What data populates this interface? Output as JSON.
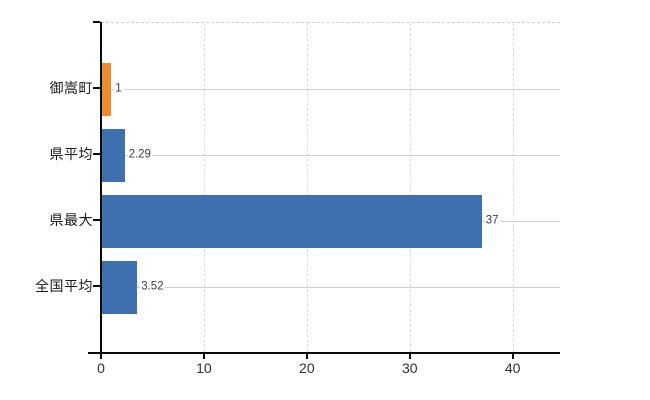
{
  "chart_data": {
    "type": "bar",
    "orientation": "horizontal",
    "title": "",
    "categories": [
      "御嵩町",
      "県平均",
      "県最大",
      "全国平均"
    ],
    "values": [
      1,
      2.29,
      37,
      3.52
    ],
    "value_labels": [
      "1",
      "2.29",
      "37",
      "3.52"
    ],
    "bar_colors": [
      "#ee8c32",
      "#3e6fae",
      "#3e6fae",
      "#3e6fae"
    ],
    "series_colors": {
      "highlight": "#ee8c32",
      "default": "#3e6fae"
    },
    "x_ticks": [
      0,
      10,
      20,
      30,
      40
    ],
    "x_tick_labels": [
      "0",
      "10",
      "20",
      "30",
      "40"
    ],
    "xlim": [
      0,
      44.6
    ],
    "xlabel": "",
    "ylabel": "",
    "grid": {
      "vertical": "dashed",
      "horizontal": "solid"
    },
    "legend": "none"
  },
  "colors": {
    "background": "#ffffff",
    "axis": "#0a0a0a",
    "grid_vertical": "#d8d8d8",
    "grid_horizontal": "#cdd4cc",
    "category_text": "#1a1a1a",
    "tick_text": "#2e2e2e",
    "value_text": "#3c3c3c"
  }
}
